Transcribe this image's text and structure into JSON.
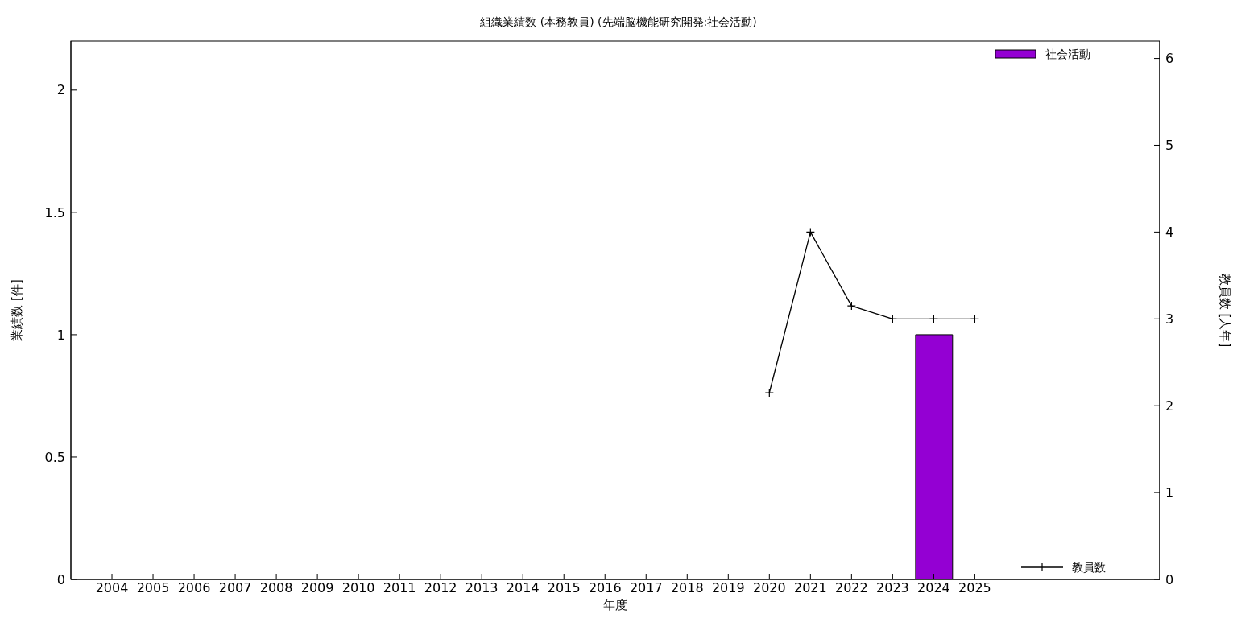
{
  "chart_data": {
    "type": "bar",
    "title": "組織業績数 (本務教員) (先端脳機能研究開発:社会活動)",
    "xlabel": "年度",
    "ylabel": "業績数 [件]",
    "y2label": "教員数 [人年]",
    "x": [
      2004,
      2005,
      2006,
      2007,
      2008,
      2009,
      2010,
      2011,
      2012,
      2013,
      2014,
      2015,
      2016,
      2017,
      2018,
      2019,
      2020,
      2021,
      2022,
      2023,
      2024,
      2025
    ],
    "series": [
      {
        "name": "社会活動",
        "color": "#9400d3",
        "values": [
          0,
          0,
          0,
          0,
          0,
          0,
          0,
          0,
          0,
          0,
          0,
          0,
          0,
          0,
          0,
          0,
          0,
          0,
          0,
          0,
          1,
          0
        ]
      },
      {
        "name": "教員数",
        "type": "line",
        "axis": "y2",
        "color": "#000000",
        "marker": "cross",
        "values": [
          null,
          null,
          null,
          null,
          null,
          null,
          null,
          null,
          null,
          null,
          null,
          null,
          null,
          null,
          null,
          null,
          2.15,
          4,
          3.15,
          3,
          3,
          3
        ]
      }
    ],
    "xlim": [
      2003,
      2029.5
    ],
    "xticks": [
      2004,
      2005,
      2006,
      2007,
      2008,
      2009,
      2010,
      2011,
      2012,
      2013,
      2014,
      2015,
      2016,
      2017,
      2018,
      2019,
      2020,
      2021,
      2022,
      2023,
      2024,
      2025
    ],
    "ylim": [
      0,
      2.2
    ],
    "yticks": [
      0,
      0.5,
      1,
      1.5,
      2
    ],
    "y2lim": [
      0,
      6.2
    ],
    "y2ticks": [
      0,
      1,
      2,
      3,
      4,
      5,
      6
    ],
    "grid": false,
    "legend": "right"
  }
}
